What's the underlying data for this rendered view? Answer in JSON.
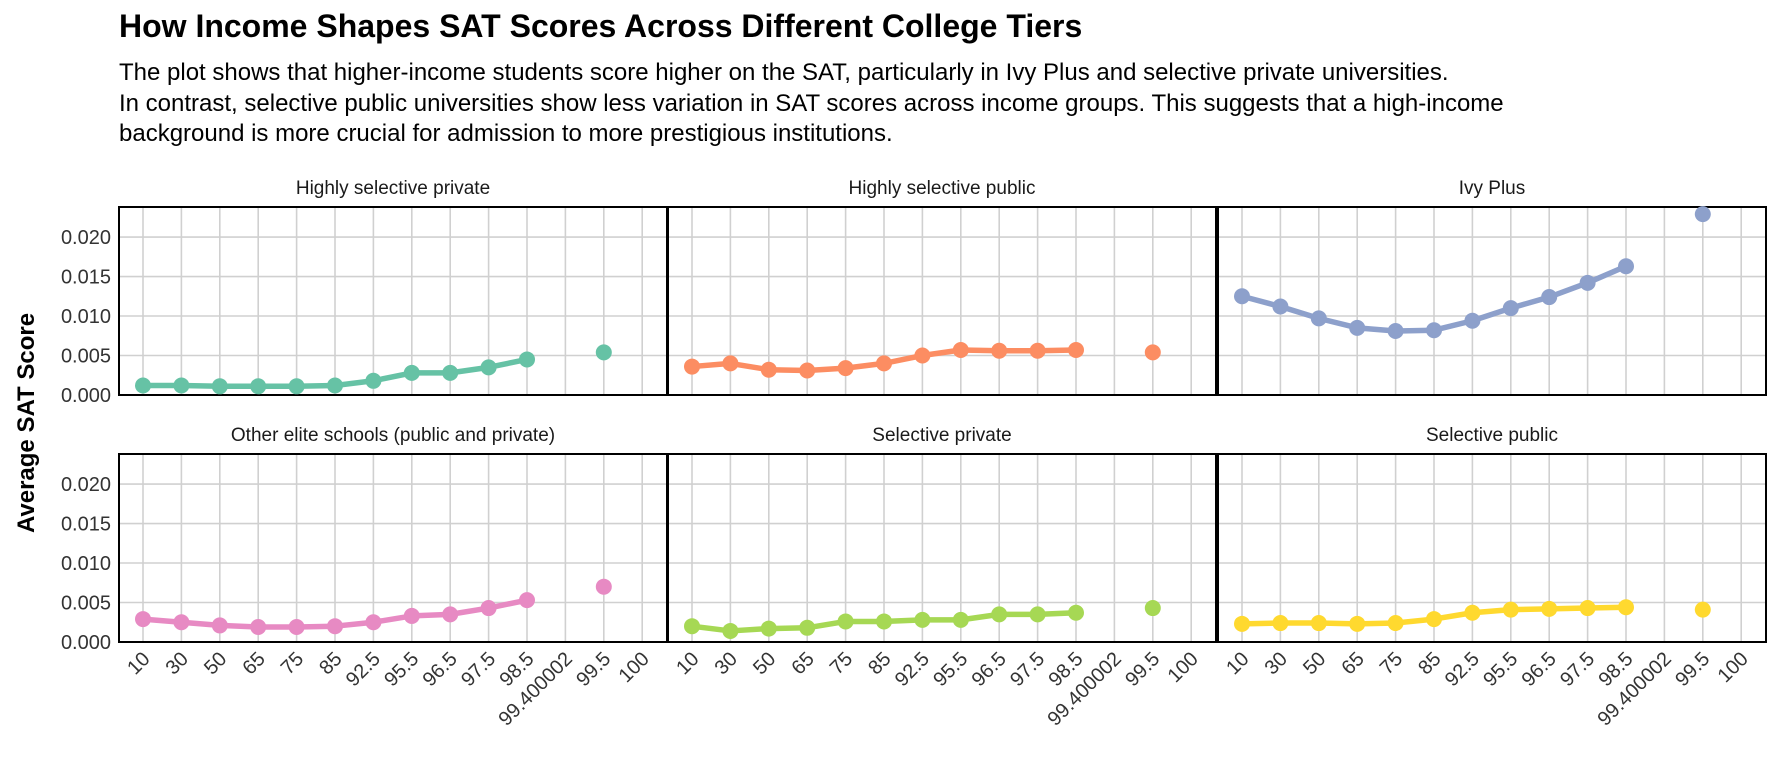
{
  "chart_data": {
    "type": "line",
    "title": "How Income Shapes SAT Scores Across Different College Tiers",
    "subtitle_lines": [
      "The plot shows that higher-income students score higher on the SAT, particularly in Ivy Plus and selective private universities.",
      "In contrast, selective public universities show less variation in SAT scores across income groups. This suggests that a high-income",
      "background is more crucial for admission to more prestigious institutions."
    ],
    "ylabel": "Average SAT Score",
    "xlabel": "",
    "x_categories": [
      "10",
      "30",
      "50",
      "65",
      "75",
      "85",
      "92.5",
      "95.5",
      "96.5",
      "97.5",
      "98.5",
      "99.400002",
      "99.5",
      "100"
    ],
    "y_ticks": [
      "0.000",
      "0.005",
      "0.010",
      "0.015",
      "0.020"
    ],
    "ylim": [
      0,
      0.0238
    ],
    "grid": true,
    "legend": "none",
    "facets": [
      {
        "name": "Highly selective private",
        "color": "#66C2A5",
        "values": [
          0.0012,
          0.0012,
          0.0011,
          0.0011,
          0.0011,
          0.0012,
          0.0018,
          0.0028,
          0.0028,
          0.0035,
          0.0045,
          null,
          0.0054,
          null
        ]
      },
      {
        "name": "Highly selective public",
        "color": "#FC8D62",
        "values": [
          0.0036,
          0.004,
          0.0032,
          0.0031,
          0.0034,
          0.004,
          0.005,
          0.0057,
          0.0056,
          0.0056,
          0.0057,
          null,
          0.0054,
          null
        ]
      },
      {
        "name": "Ivy Plus",
        "color": "#8DA0CB",
        "values": [
          0.0125,
          0.0112,
          0.0097,
          0.0085,
          0.0081,
          0.0082,
          0.0094,
          0.011,
          0.0124,
          0.0142,
          0.0163,
          null,
          0.0229,
          null
        ]
      },
      {
        "name": "Other elite schools (public and private)",
        "color": "#E78AC3",
        "values": [
          0.0029,
          0.0025,
          0.0021,
          0.0019,
          0.0019,
          0.002,
          0.0025,
          0.0033,
          0.0035,
          0.0043,
          0.0053,
          null,
          0.007,
          null
        ]
      },
      {
        "name": "Selective private",
        "color": "#A6D854",
        "values": [
          0.002,
          0.0014,
          0.0017,
          0.0018,
          0.0026,
          0.0026,
          0.0028,
          0.0028,
          0.0035,
          0.0035,
          0.0037,
          null,
          0.0043,
          null
        ]
      },
      {
        "name": "Selective public",
        "color": "#FFD92F",
        "values": [
          0.0023,
          0.0024,
          0.0024,
          0.0023,
          0.0024,
          0.0029,
          0.0037,
          0.0041,
          0.0042,
          0.0043,
          0.0044,
          null,
          0.0041,
          null
        ]
      }
    ]
  }
}
